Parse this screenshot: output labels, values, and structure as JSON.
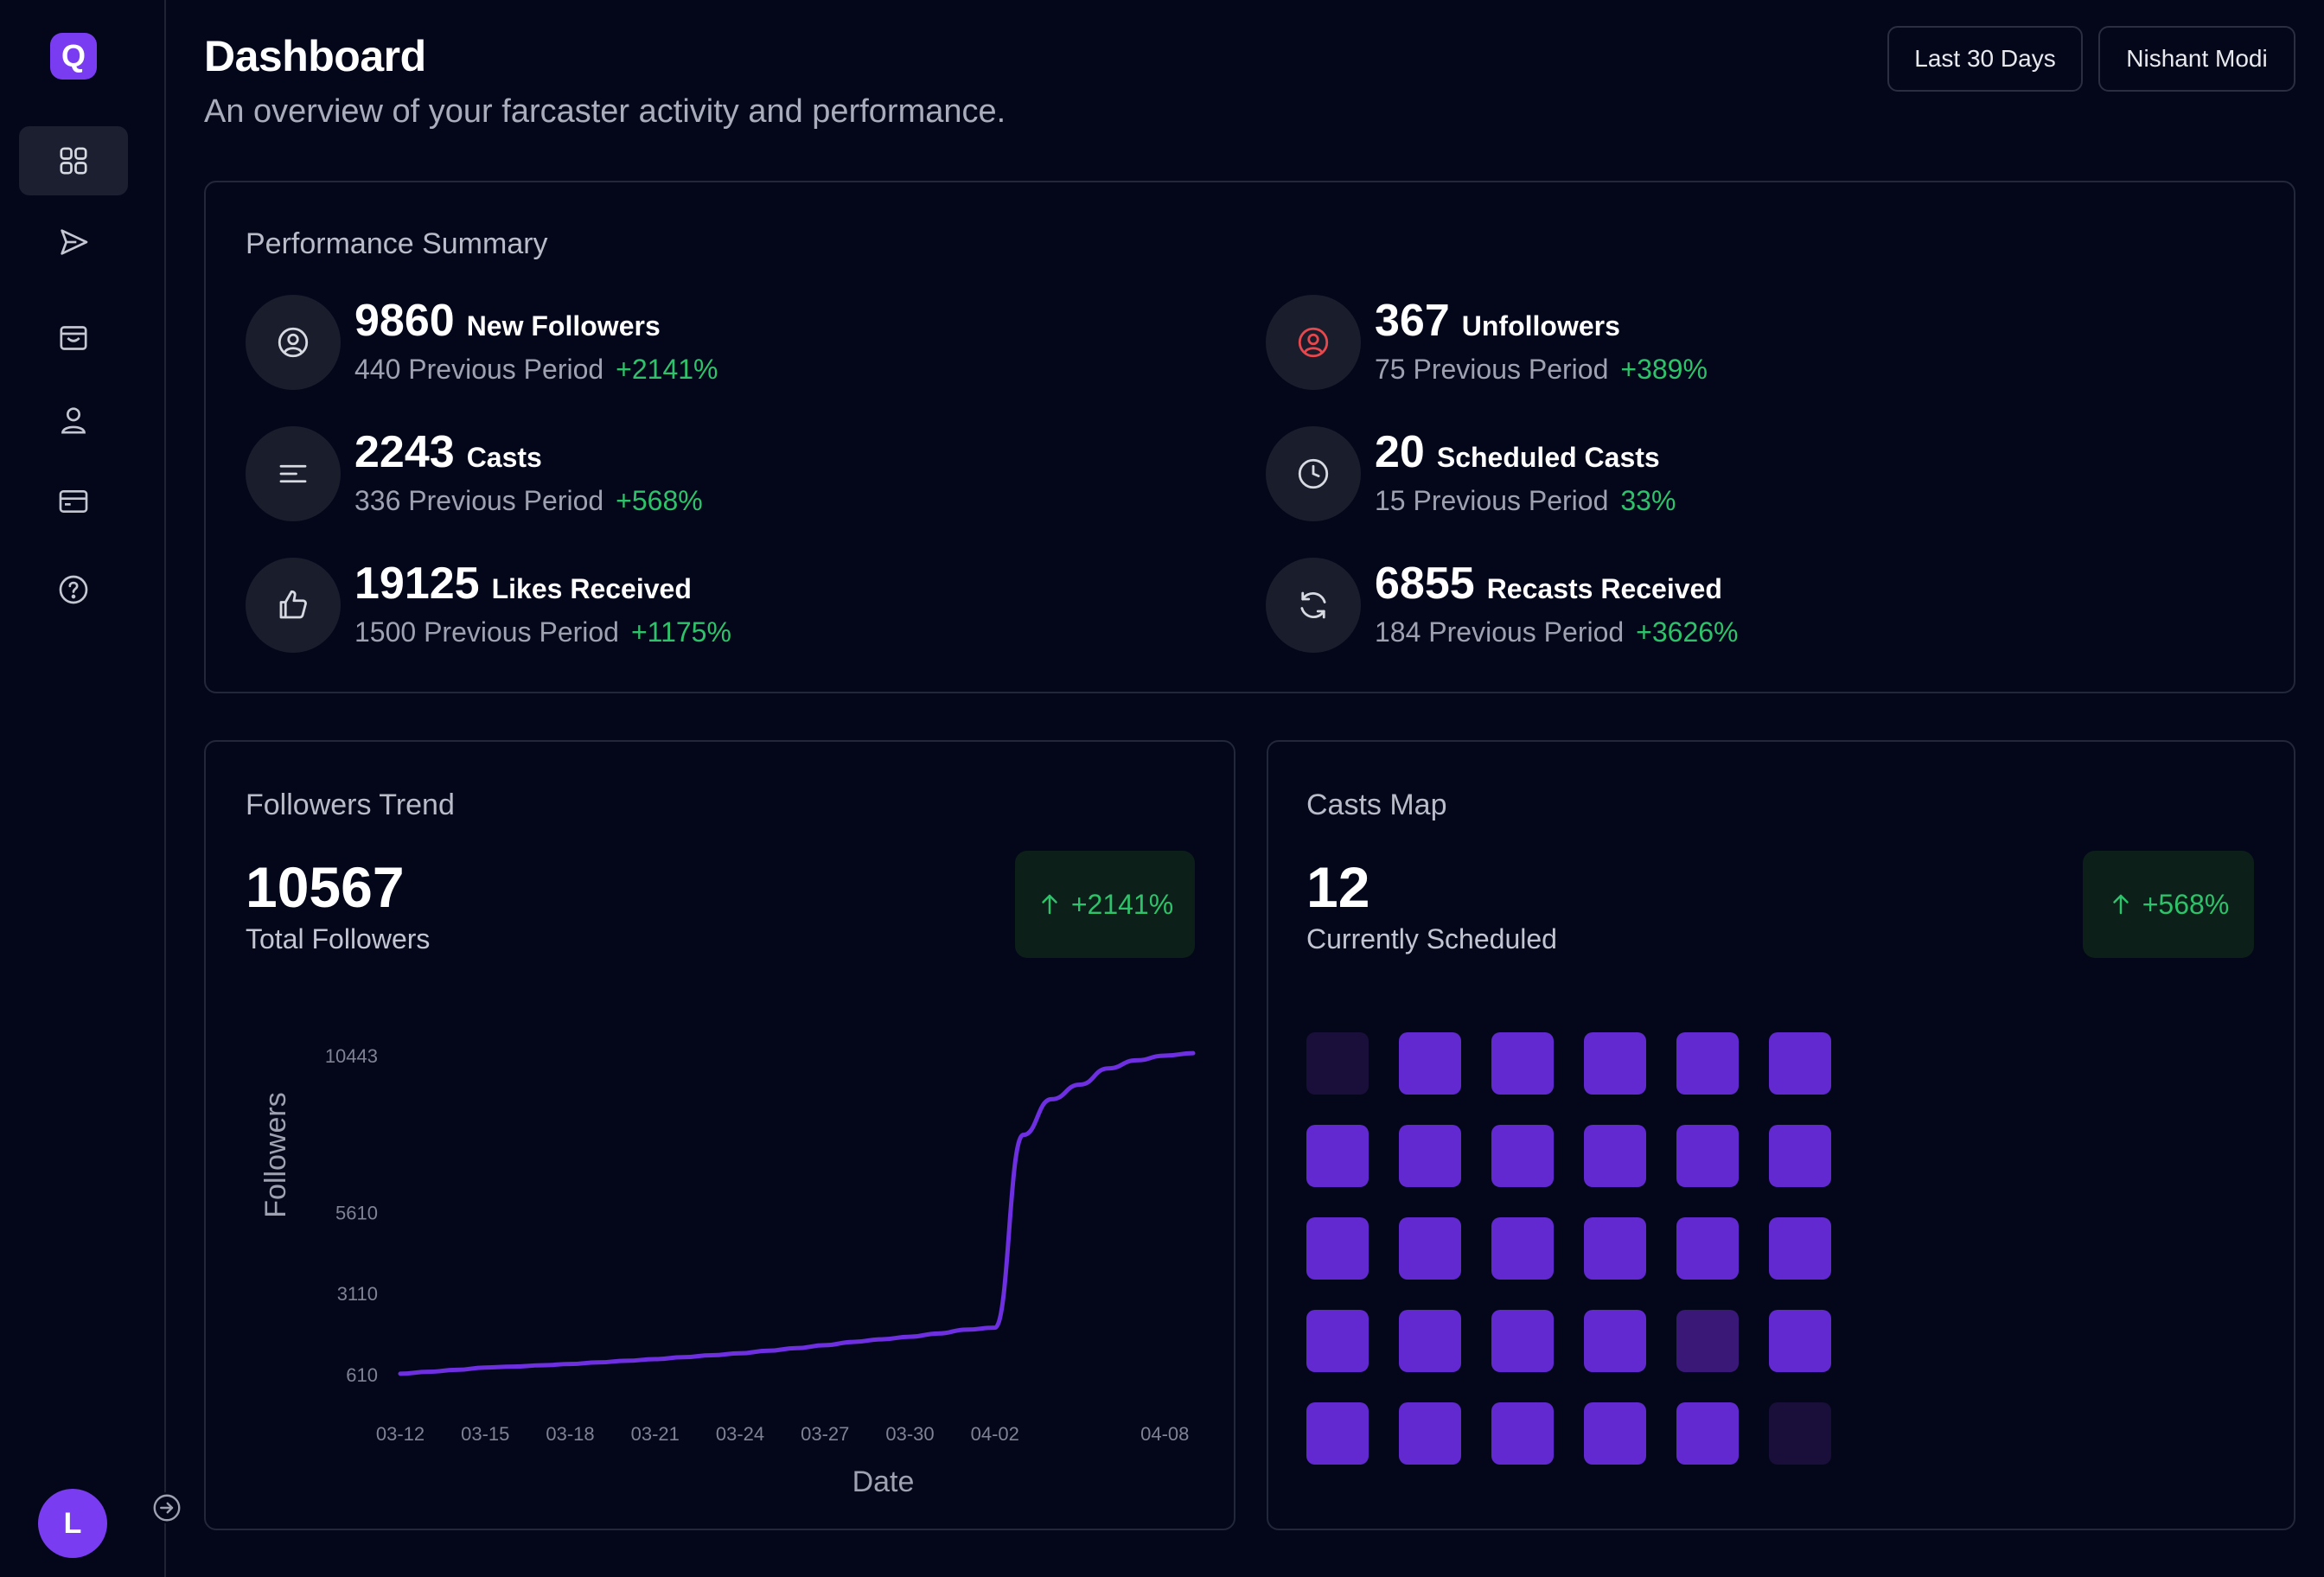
{
  "app": {
    "logo_letter": "Q",
    "brand_color": "#7a3cf0"
  },
  "sidebar": {
    "items": [
      {
        "icon": "grid-icon",
        "active": true
      },
      {
        "icon": "send-icon",
        "active": false
      },
      {
        "icon": "inbox-icon",
        "active": false
      },
      {
        "icon": "user-icon",
        "active": false
      },
      {
        "icon": "credit-card-icon",
        "active": false
      },
      {
        "icon": "help-circle-icon",
        "active": false
      }
    ],
    "avatar_letter": "L",
    "collapse_icon": "arrow-right-circle-icon"
  },
  "header": {
    "title": "Dashboard",
    "subtitle": "An overview of your farcaster activity and performance.",
    "date_range_label": "Last 30 Days",
    "user_label": "Nishant Modi"
  },
  "performance": {
    "title": "Performance Summary",
    "stats": [
      {
        "value": "9860",
        "label": "New Followers",
        "previous": "440 Previous Period",
        "change": "+2141%",
        "icon": "user-circle-icon"
      },
      {
        "value": "367",
        "label": "Unfollowers",
        "previous": "75 Previous Period",
        "change": "+389%",
        "icon": "user-circle-icon"
      },
      {
        "value": "2243",
        "label": "Casts",
        "previous": "336 Previous Period",
        "change": "+568%",
        "icon": "align-lines-icon"
      },
      {
        "value": "20",
        "label": "Scheduled Casts",
        "previous": "15 Previous Period",
        "change": "33%",
        "icon": "clock-icon"
      },
      {
        "value": "19125",
        "label": "Likes Received",
        "previous": "1500 Previous Period",
        "change": "+1175%",
        "icon": "thumbs-up-icon"
      },
      {
        "value": "6855",
        "label": "Recasts Received",
        "previous": "184 Previous Period",
        "change": "+3626%",
        "icon": "refresh-icon"
      }
    ],
    "colors": {
      "positive": "#2ec36a",
      "unfollower_icon": "#e5484d"
    }
  },
  "followers_trend": {
    "title": "Followers Trend",
    "total": "10567",
    "total_caption": "Total Followers",
    "change": "+2141%"
  },
  "casts_map": {
    "title": "Casts Map",
    "count": "12",
    "caption": "Currently Scheduled",
    "change": "+568%",
    "grid": [
      [
        0,
        1,
        1,
        1,
        1,
        1
      ],
      [
        1,
        1,
        1,
        1,
        1,
        1
      ],
      [
        1,
        1,
        1,
        1,
        1,
        1
      ],
      [
        1,
        1,
        1,
        1,
        0.5,
        1
      ],
      [
        1,
        1,
        1,
        1,
        1,
        0
      ]
    ],
    "colors": {
      "on": "#6129cf",
      "mid": "#3a1877",
      "off": "#1a0f3a"
    }
  },
  "chart_data": {
    "type": "line",
    "xlabel": "Date",
    "ylabel": "Followers",
    "x_ticks": [
      "03-12",
      "03-15",
      "03-18",
      "03-21",
      "03-24",
      "03-27",
      "03-30",
      "04-02",
      "04-08"
    ],
    "y_ticks": [
      "610",
      "3110",
      "5610",
      "10443"
    ],
    "ylim": [
      610,
      10443
    ],
    "series": [
      {
        "color": "#6d2fe0",
        "x": [
          "03-12",
          "03-13",
          "03-14",
          "03-15",
          "03-16",
          "03-17",
          "03-18",
          "03-19",
          "03-20",
          "03-21",
          "03-22",
          "03-23",
          "03-24",
          "03-25",
          "03-26",
          "03-27",
          "03-28",
          "03-29",
          "03-30",
          "03-31",
          "04-01",
          "04-02",
          "04-03",
          "04-04",
          "04-05",
          "04-06",
          "04-07",
          "04-08",
          "04-09"
        ],
        "values": [
          640,
          700,
          760,
          830,
          860,
          900,
          940,
          990,
          1040,
          1090,
          1150,
          1210,
          1270,
          1350,
          1430,
          1520,
          1620,
          1700,
          1780,
          1880,
          2000,
          2060,
          8000,
          9100,
          9550,
          10050,
          10300,
          10443,
          10520
        ]
      }
    ],
    "grid": false
  }
}
